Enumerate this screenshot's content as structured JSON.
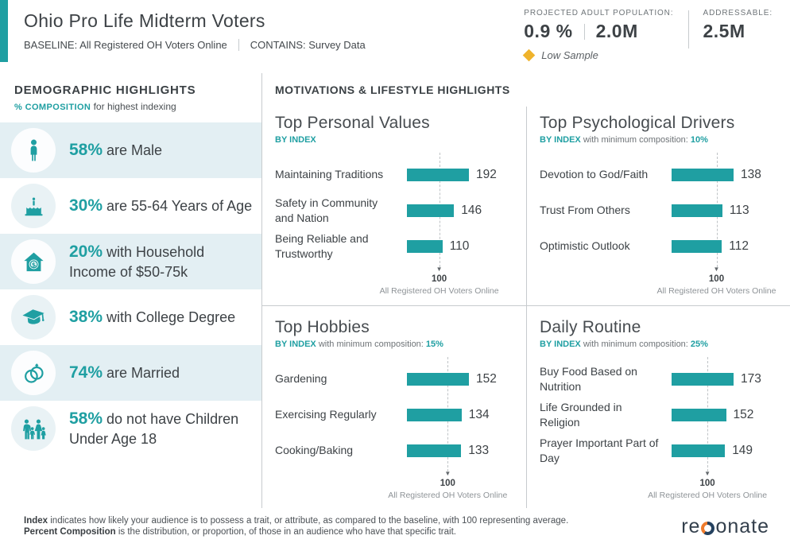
{
  "header": {
    "title": "Ohio Pro Life Midterm Voters",
    "baseline": "BASELINE: All Registered OH Voters Online",
    "contains": "CONTAINS: Survey Data",
    "projected_label": "PROJECTED ADULT POPULATION:",
    "projected_percent": "0.9 %",
    "projected_count": "2.0M",
    "addressable_label": "ADDRESSABLE:",
    "addressable_value": "2.5M",
    "low_sample_label": "Low Sample"
  },
  "sidebar": {
    "title": "DEMOGRAPHIC HIGHLIGHTS",
    "subtitle_accent": "% COMPOSITION",
    "subtitle_rest": " for highest indexing",
    "stats": [
      {
        "icon": "male-icon",
        "value": "58%",
        "text": "are Male"
      },
      {
        "icon": "birthday-cake-icon",
        "value": "30%",
        "text": "are 55-64 Years of Age"
      },
      {
        "icon": "house-dollar-icon",
        "value": "20%",
        "text": "with Household Income of $50-75k"
      },
      {
        "icon": "graduation-cap-icon",
        "value": "38%",
        "text": "with College Degree"
      },
      {
        "icon": "wedding-rings-icon",
        "value": "74%",
        "text": "are Married"
      },
      {
        "icon": "family-icon",
        "value": "58%",
        "text": "do not have Children Under Age 18"
      }
    ]
  },
  "main": {
    "title": "MOTIVATIONS & LIFESTYLE HIGHLIGHTS"
  },
  "chart_data": [
    {
      "type": "bar",
      "orientation": "horizontal",
      "title": "Top Personal Values",
      "subtitle_accent": "BY INDEX",
      "min_composition_label": "",
      "min_composition_value": "",
      "categories": [
        "Maintaining Traditions",
        "Safety in Community and Nation",
        "Being Reliable and Trustworthy"
      ],
      "values": [
        192,
        146,
        110
      ],
      "baseline": {
        "value": 100,
        "label": "All Registered OH Voters Online"
      },
      "bar_color": "#1f9fa2"
    },
    {
      "type": "bar",
      "orientation": "horizontal",
      "title": "Top Psychological Drivers",
      "subtitle_accent": "BY INDEX",
      "min_composition_label": "with minimum composition:",
      "min_composition_value": "10%",
      "categories": [
        "Devotion to God/Faith",
        "Trust From Others",
        "Optimistic Outlook"
      ],
      "values": [
        138,
        113,
        112
      ],
      "baseline": {
        "value": 100,
        "label": "All Registered OH Voters Online"
      },
      "bar_color": "#1f9fa2"
    },
    {
      "type": "bar",
      "orientation": "horizontal",
      "title": "Top Hobbies",
      "subtitle_accent": "BY INDEX",
      "min_composition_label": "with minimum composition:",
      "min_composition_value": "15%",
      "categories": [
        "Gardening",
        "Exercising Regularly",
        "Cooking/Baking"
      ],
      "values": [
        152,
        134,
        133
      ],
      "baseline": {
        "value": 100,
        "label": "All Registered OH Voters Online"
      },
      "bar_color": "#1f9fa2"
    },
    {
      "type": "bar",
      "orientation": "horizontal",
      "title": "Daily Routine",
      "subtitle_accent": "BY INDEX",
      "min_composition_label": "with minimum composition:",
      "min_composition_value": "25%",
      "categories": [
        "Buy Food Based on Nutrition",
        "Life Grounded in Religion",
        "Prayer Important Part of Day"
      ],
      "values": [
        173,
        152,
        149
      ],
      "baseline": {
        "value": 100,
        "label": "All Registered OH Voters Online"
      },
      "bar_color": "#1f9fa2"
    }
  ],
  "footer": {
    "line1_bold": "Index",
    "line1_rest": " indicates how likely your audience is to possess a trait, or attribute, as compared to the baseline, with 100 representing average.",
    "line2_bold": "Percent Composition",
    "line2_rest": " is the distribution, or proportion, of those in an audience who have that specific trait.",
    "logo_pre": "re",
    "logo_post": "onate"
  },
  "colors": {
    "accent": "#1f9fa2",
    "row_alt_bg": "#e3eff3",
    "low_sample": "#efb32c",
    "divider": "#c7cbce",
    "logo_orange": "#ee7b2d",
    "logo_navy": "#24415f"
  }
}
